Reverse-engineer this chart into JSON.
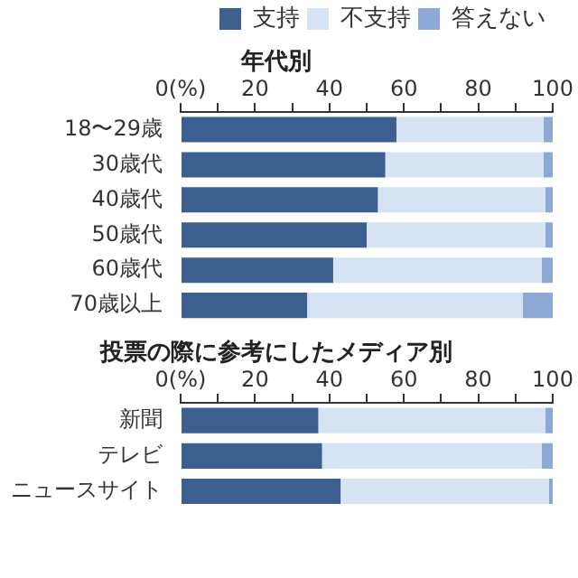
{
  "chart_data": [
    {
      "type": "bar",
      "orientation": "horizontal",
      "stacked": true,
      "title": "年代別",
      "categories": [
        "18〜29歳",
        "30歳代",
        "40歳代",
        "50歳代",
        "60歳代",
        "70歳以上"
      ],
      "series": [
        {
          "name": "支持",
          "color": "#3d5f8f",
          "values": [
            58,
            55,
            53,
            50,
            41,
            34
          ]
        },
        {
          "name": "不支持",
          "color": "#d6e3f2",
          "values": [
            39.5,
            42.5,
            45,
            48,
            56,
            58
          ]
        },
        {
          "name": "答えない",
          "color": "#8ea8d6",
          "values": [
            2.5,
            2.5,
            2,
            2,
            3,
            8
          ]
        }
      ],
      "xlim": [
        0,
        100
      ],
      "xticks": [
        {
          "value": 0,
          "label": "0(%)"
        },
        {
          "value": 10,
          "label": null
        },
        20,
        {
          "value": 30,
          "label": null
        },
        40,
        {
          "value": 50,
          "label": null
        },
        60,
        {
          "value": 70,
          "label": null
        },
        80,
        {
          "value": 90,
          "label": null
        },
        100
      ],
      "grid": false,
      "legend": "top"
    },
    {
      "type": "bar",
      "orientation": "horizontal",
      "stacked": true,
      "title": "投票の際に参考にしたメディア別",
      "categories": [
        "新聞",
        "テレビ",
        "ニュースサイト"
      ],
      "series": [
        {
          "color": "#3d5f8f",
          "values": [
            37,
            38,
            43
          ]
        },
        {
          "color": "#d6e3f2",
          "values": [
            61,
            59,
            56
          ]
        },
        {
          "color": "#8ea8d6",
          "values": [
            2,
            3,
            1
          ]
        }
      ],
      "xlim": [
        0,
        100
      ],
      "xticks": [
        {
          "value": 0,
          "label": "0(%)"
        },
        {
          "value": 10,
          "label": null
        },
        20,
        {
          "value": 30,
          "label": null
        },
        40,
        {
          "value": 50,
          "label": null
        },
        60,
        {
          "value": 70,
          "label": null
        },
        80,
        {
          "value": 90,
          "label": null
        },
        100
      ],
      "grid": false,
      "legend": false
    }
  ]
}
